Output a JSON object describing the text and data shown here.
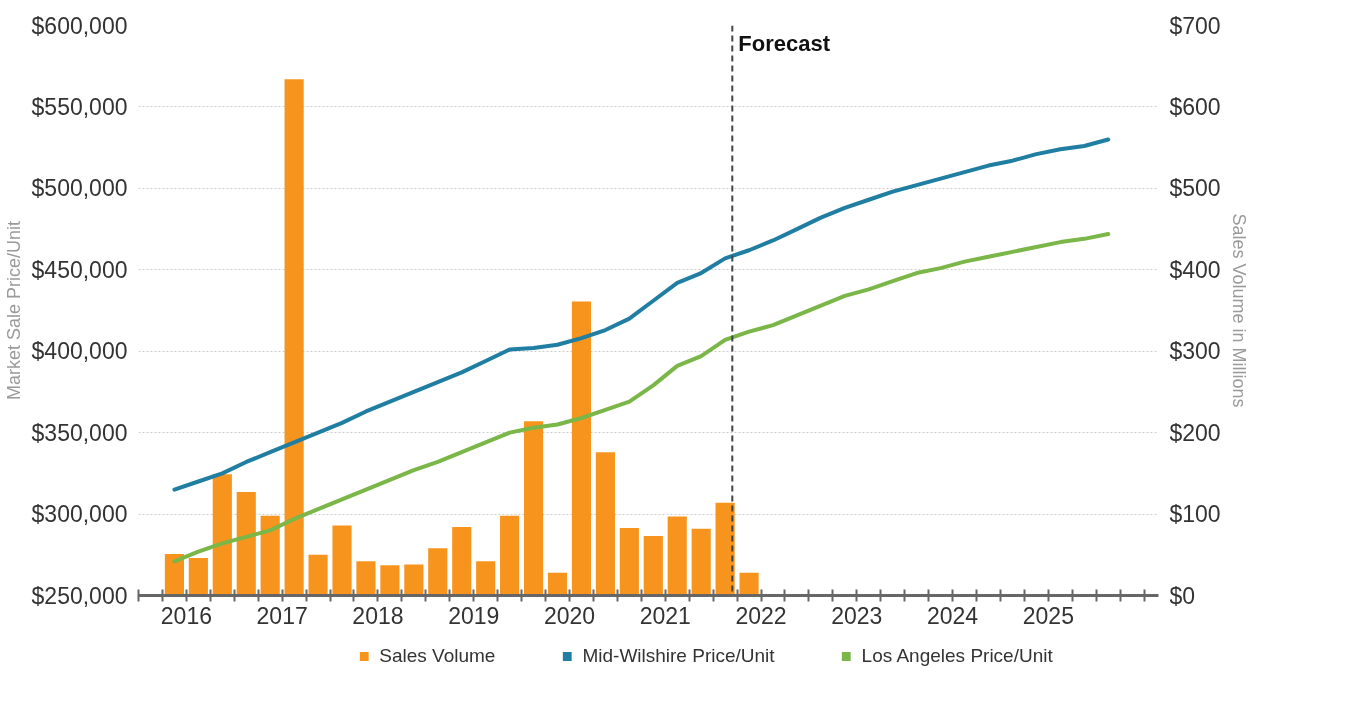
{
  "chart_data": {
    "type": "line",
    "ylabel": "Market Sale Price/Unit",
    "y2label": "Sales Volume in Millions",
    "xlim": [
      2016,
      2026.65
    ],
    "xticks": [
      {
        "value": 2016,
        "label": null
      },
      {
        "value": 2016.25,
        "label": null
      },
      {
        "value": 2016.5,
        "label": "2016"
      },
      {
        "value": 2016.75,
        "label": null
      },
      {
        "value": 2017,
        "label": null
      },
      {
        "value": 2017.25,
        "label": null
      },
      {
        "value": 2017.5,
        "label": "2017"
      },
      {
        "value": 2017.75,
        "label": null
      },
      {
        "value": 2018,
        "label": null
      },
      {
        "value": 2018.25,
        "label": null
      },
      {
        "value": 2018.5,
        "label": "2018"
      },
      {
        "value": 2018.75,
        "label": null
      },
      {
        "value": 2019,
        "label": null
      },
      {
        "value": 2019.25,
        "label": null
      },
      {
        "value": 2019.5,
        "label": "2019"
      },
      {
        "value": 2019.75,
        "label": null
      },
      {
        "value": 2020,
        "label": null
      },
      {
        "value": 2020.25,
        "label": null
      },
      {
        "value": 2020.5,
        "label": "2020"
      },
      {
        "value": 2020.75,
        "label": null
      },
      {
        "value": 2021,
        "label": null
      },
      {
        "value": 2021.25,
        "label": null
      },
      {
        "value": 2021.5,
        "label": "2021"
      },
      {
        "value": 2021.75,
        "label": null
      },
      {
        "value": 2022,
        "label": null
      },
      {
        "value": 2022.25,
        "label": null
      },
      {
        "value": 2022.5,
        "label": "2022"
      },
      {
        "value": 2022.75,
        "label": null
      },
      {
        "value": 2023,
        "label": null
      },
      {
        "value": 2023.25,
        "label": null
      },
      {
        "value": 2023.5,
        "label": "2023"
      },
      {
        "value": 2023.75,
        "label": null
      },
      {
        "value": 2024,
        "label": null
      },
      {
        "value": 2024.25,
        "label": null
      },
      {
        "value": 2024.5,
        "label": "2024"
      },
      {
        "value": 2024.75,
        "label": null
      },
      {
        "value": 2025,
        "label": null
      },
      {
        "value": 2025.25,
        "label": null
      },
      {
        "value": 2025.5,
        "label": "2025"
      },
      {
        "value": 2025.75,
        "label": null
      },
      {
        "value": 2026,
        "label": null
      },
      {
        "value": 2026.25,
        "label": null
      },
      {
        "value": 2026.5,
        "label": null
      }
    ],
    "ylim": [
      250000,
      600000
    ],
    "yticks": [
      {
        "value": 250000,
        "label": "$250,000"
      },
      {
        "value": 300000,
        "label": "$300,000"
      },
      {
        "value": 350000,
        "label": "$350,000"
      },
      {
        "value": 400000,
        "label": "$400,000"
      },
      {
        "value": 450000,
        "label": "$450,000"
      },
      {
        "value": 500000,
        "label": "$500,000"
      },
      {
        "value": 550000,
        "label": "$550,000"
      },
      {
        "value": 600000,
        "label": "$600,000"
      }
    ],
    "y2lim": [
      0,
      700
    ],
    "y2ticks": [
      {
        "value": 0,
        "label": "$0"
      },
      {
        "value": 100,
        "label": "$100"
      },
      {
        "value": 200,
        "label": "$200"
      },
      {
        "value": 300,
        "label": "$300"
      },
      {
        "value": 400,
        "label": "$400"
      },
      {
        "value": 500,
        "label": "$500"
      },
      {
        "value": 600,
        "label": "$600"
      },
      {
        "value": 700,
        "label": "$700"
      }
    ],
    "grid": "y",
    "legend": "bottom",
    "ref_lines": [
      {
        "axis": "x",
        "value": 2022.2,
        "label": "Forecast",
        "color": "#444444",
        "line_style": "dashed"
      }
    ],
    "series": [
      {
        "name": "Sales Volume",
        "type": "bar",
        "axis": "y2",
        "color": "#f7941d",
        "x": [
          2016.375,
          2016.625,
          2016.875,
          2017.125,
          2017.375,
          2017.625,
          2017.875,
          2018.125,
          2018.375,
          2018.625,
          2018.875,
          2019.125,
          2019.375,
          2019.625,
          2019.875,
          2020.125,
          2020.375,
          2020.625,
          2020.875,
          2021.125,
          2021.375,
          2021.625,
          2021.875,
          2022.125,
          2022.375
        ],
        "values": [
          51,
          46,
          149,
          127,
          98,
          634,
          50,
          86,
          42,
          37,
          38,
          58,
          84,
          42,
          98,
          214,
          28,
          361,
          176,
          83,
          73,
          97,
          82,
          114,
          28
        ]
      },
      {
        "name": "Mid-Wilshire Price/Unit",
        "color": "#1f7ea1",
        "x": [
          2016.375,
          2016.625,
          2016.875,
          2017.125,
          2017.375,
          2017.625,
          2017.875,
          2018.125,
          2018.375,
          2018.625,
          2018.875,
          2019.125,
          2019.375,
          2019.625,
          2019.875,
          2020.125,
          2020.375,
          2020.625,
          2020.875,
          2021.125,
          2021.375,
          2021.625,
          2021.875,
          2022.125,
          2022.375,
          2022.625,
          2022.875,
          2023.125,
          2023.375,
          2023.625,
          2023.875,
          2024.125,
          2024.375,
          2024.625,
          2024.875,
          2025.125,
          2025.375,
          2025.625,
          2025.875,
          2026.125
        ],
        "values": [
          315000,
          320000,
          325000,
          332000,
          338000,
          344000,
          350000,
          356000,
          363000,
          369000,
          375000,
          381000,
          387000,
          394000,
          401000,
          402000,
          404000,
          408000,
          413000,
          420000,
          431000,
          442000,
          448000,
          457000,
          462000,
          468000,
          475000,
          482000,
          488000,
          493000,
          498000,
          502000,
          506000,
          510000,
          514000,
          517000,
          521000,
          524000,
          526000,
          530000
        ]
      },
      {
        "name": "Los Angeles Price/Unit",
        "color": "#7ab648",
        "x": [
          2016.375,
          2016.625,
          2016.875,
          2017.125,
          2017.375,
          2017.625,
          2017.875,
          2018.125,
          2018.375,
          2018.625,
          2018.875,
          2019.125,
          2019.375,
          2019.625,
          2019.875,
          2020.125,
          2020.375,
          2020.625,
          2020.875,
          2021.125,
          2021.375,
          2021.625,
          2021.875,
          2022.125,
          2022.375,
          2022.625,
          2022.875,
          2023.125,
          2023.375,
          2023.625,
          2023.875,
          2024.125,
          2024.375,
          2024.625,
          2024.875,
          2025.125,
          2025.375,
          2025.625,
          2025.875,
          2026.125
        ],
        "values": [
          271000,
          277000,
          282000,
          286000,
          290000,
          297000,
          303000,
          309000,
          315000,
          321000,
          327000,
          332000,
          338000,
          344000,
          350000,
          353000,
          355000,
          359000,
          364000,
          369000,
          379000,
          391000,
          397000,
          407000,
          412000,
          416000,
          422000,
          428000,
          434000,
          438000,
          443000,
          448000,
          451000,
          455000,
          458000,
          461000,
          464000,
          467000,
          469000,
          472000
        ]
      }
    ]
  }
}
